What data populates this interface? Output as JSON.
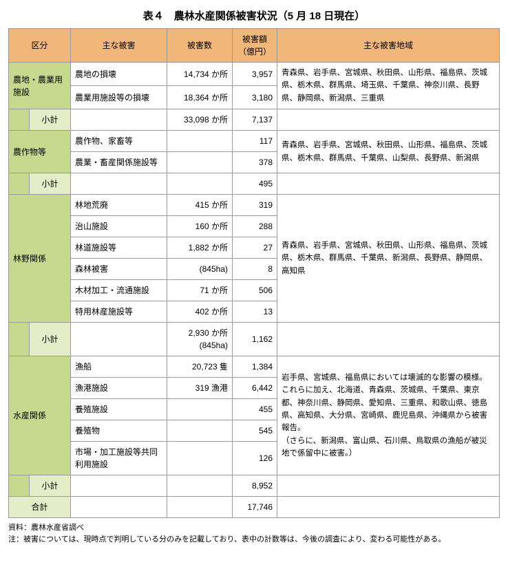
{
  "title": "表４　農林水産関係被害状況（5 月 18 日現在）",
  "headers": {
    "category": "区分",
    "damage": "主な被害",
    "count": "被害数",
    "amount": "被害額（億円）",
    "region": "主な被害地域"
  },
  "sections": [
    {
      "name": "農地・農業用施設",
      "rows": [
        {
          "damage": "農地の損壊",
          "count": "14,734 か所",
          "amount": "3,957"
        },
        {
          "damage": "農業用施設等の損壊",
          "count": "18,364 か所",
          "amount": "3,180"
        }
      ],
      "subtotal": {
        "label": "小計",
        "count": "33,098 か所",
        "amount": "7,137"
      },
      "region": "青森県、岩手県、宮城県、秋田県、山形県、福島県、茨城県、栃木県、群馬県、埼玉県、千葉県、神奈川県、長野県、静岡県、新潟県、三重県"
    },
    {
      "name": "農作物等",
      "rows": [
        {
          "damage": "農作物、家畜等",
          "count": "",
          "amount": "117"
        },
        {
          "damage": "農業・畜産関係施設等",
          "count": "",
          "amount": "378"
        }
      ],
      "subtotal": {
        "label": "小計",
        "count": "",
        "amount": "495"
      },
      "region": "青森県、岩手県、宮城県、秋田県、山形県、福島県、茨城県、栃木県、群馬県、千葉県、山梨県、長野県、新潟県"
    },
    {
      "name": "林野関係",
      "rows": [
        {
          "damage": "林地荒廃",
          "count": "415 か所",
          "amount": "319"
        },
        {
          "damage": "治山施設",
          "count": "160 か所",
          "amount": "288"
        },
        {
          "damage": "林道施設等",
          "count": "1,882 か所",
          "amount": "27"
        },
        {
          "damage": "森林被害",
          "count": "(845ha)",
          "amount": "8"
        },
        {
          "damage": "木材加工・流通施設",
          "count": "71 か所",
          "amount": "506"
        },
        {
          "damage": "特用林産施設等",
          "count": "402 か所",
          "amount": "13"
        }
      ],
      "subtotal": {
        "label": "小計",
        "count": "2,930 か所(845ha)",
        "amount": "1,162"
      },
      "region": "青森県、岩手県、宮城県、秋田県、山形県、福島県、茨城県、栃木県、群馬県、千葉県、新潟県、長野県、静岡県、高知県"
    },
    {
      "name": "水産関係",
      "rows": [
        {
          "damage": "漁船",
          "count": "20,723 隻",
          "amount": "1,384"
        },
        {
          "damage": "漁港施設",
          "count": "319 漁港",
          "amount": "6,442"
        },
        {
          "damage": "養殖施設",
          "count": "",
          "amount": "455"
        },
        {
          "damage": "養殖物",
          "count": "",
          "amount": "545"
        },
        {
          "damage": "市場・加工施設等共同利用施設",
          "count": "",
          "amount": "126"
        }
      ],
      "subtotal": {
        "label": "小計",
        "count": "",
        "amount": "8,952"
      },
      "region": "岩手県、宮城県、福島県においては壊滅的な影響の模様。\nこれらに加え、北海道、青森県、茨城県、千葉県、東京都、神奈川県、静岡県、愛知県、三重県、和歌山県、徳島県、高知県、大分県、宮崎県、鹿児島県、沖縄県から被害報告。\n（さらに、新潟県、富山県、石川県、鳥取県の漁船が被災地で係留中に被害。）"
    }
  ],
  "total": {
    "label": "合計",
    "count": "",
    "amount": "17,746"
  },
  "footnotes": {
    "source": "資料：農林水産省調べ",
    "note": "注：被害については、現時点で判明している分のみを記載しており、表中の計数等は、今後の調査により、変わる可能性がある。"
  },
  "colors": {
    "header_bg": "#f1b77a",
    "category_bg": "#c7d98f",
    "subtotal_bg": "#e4ecc8",
    "border": "#999999"
  }
}
